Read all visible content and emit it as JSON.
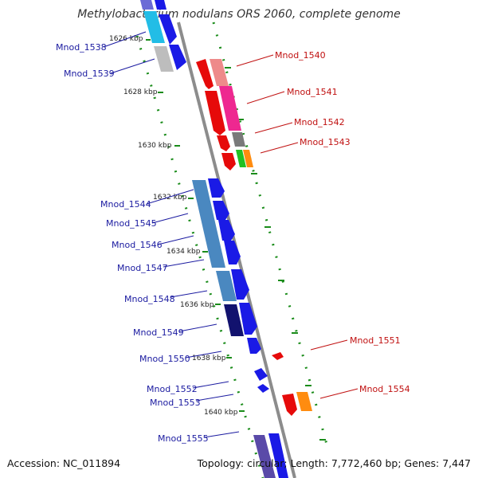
{
  "title": "Methylobacterium nodulans ORS 2060, complete genome",
  "footer": {
    "accession": "Accession: NC_011894",
    "summary": "Topology: circular; Length: 7,772,460 bp; Genes: 7,447"
  },
  "colors": {
    "backbone": "#8c8c8c",
    "dots": "#1a8c1a",
    "forward_label": "#1a1aa0",
    "reverse_label": "#c01010"
  },
  "ticks": [
    "1626 kbp",
    "1628 kbp",
    "1630 kbp",
    "1632 kbp",
    "1634 kbp",
    "1636 kbp",
    "1638 kbp",
    "1640 kbp"
  ],
  "genes_left": [
    "Mnod_1538",
    "Mnod_1539",
    "Mnod_1544",
    "Mnod_1545",
    "Mnod_1546",
    "Mnod_1547",
    "Mnod_1548",
    "Mnod_1549",
    "Mnod_1550",
    "Mnod_1552",
    "Mnod_1553",
    "Mnod_1555"
  ],
  "genes_right": [
    "Mnod_1540",
    "Mnod_1541",
    "Mnod_1542",
    "Mnod_1543",
    "Mnod_1551",
    "Mnod_1554"
  ]
}
